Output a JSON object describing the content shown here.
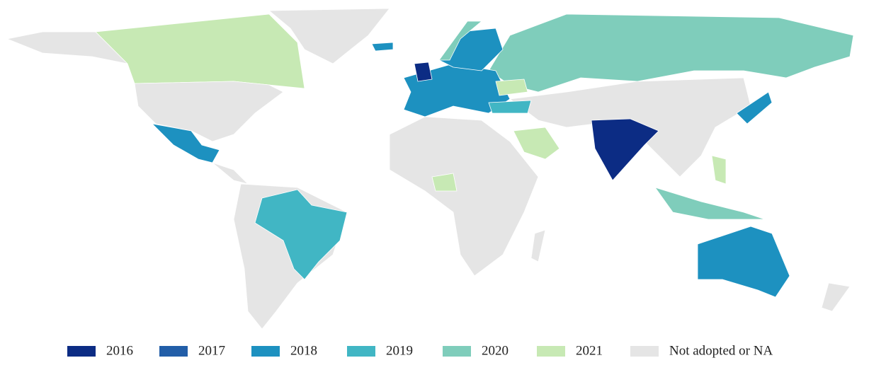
{
  "legend": {
    "items": [
      {
        "label": "2016",
        "color": "#0c2c84"
      },
      {
        "label": "2017",
        "color": "#225ea8"
      },
      {
        "label": "2018",
        "color": "#1d91c0"
      },
      {
        "label": "2019",
        "color": "#41b6c4"
      },
      {
        "label": "2020",
        "color": "#7fcdbb"
      },
      {
        "label": "2021",
        "color": "#c7e9b4"
      },
      {
        "label": "Not adopted or NA",
        "color": "#e5e5e5"
      }
    ]
  }
}
